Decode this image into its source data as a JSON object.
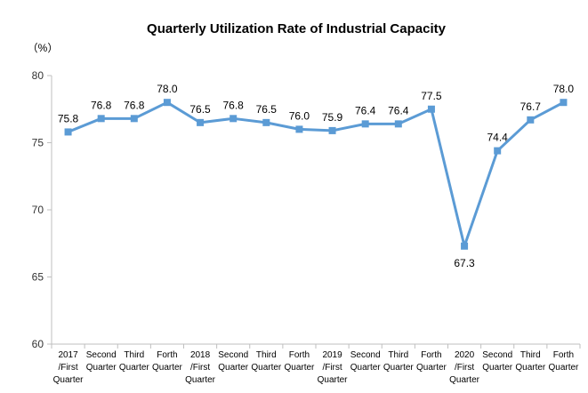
{
  "chart_data": {
    "type": "line",
    "title": "Quarterly Utilization Rate of Industrial Capacity",
    "unit_label": "（%）",
    "categories": [
      [
        "2017",
        "/First",
        "Quarter"
      ],
      [
        "Second",
        "Quarter"
      ],
      [
        "Third",
        "Quarter"
      ],
      [
        "Forth",
        "Quarter"
      ],
      [
        "2018",
        "/First",
        "Quarter"
      ],
      [
        "Second",
        "Quarter"
      ],
      [
        "Third",
        "Quarter"
      ],
      [
        "Forth",
        "Quarter"
      ],
      [
        "2019",
        "/First",
        "Quarter"
      ],
      [
        "Second",
        "Quarter"
      ],
      [
        "Third",
        "Quarter"
      ],
      [
        "Forth",
        "Quarter"
      ],
      [
        "2020",
        "/First",
        "Quarter"
      ],
      [
        "Second",
        "Quarter"
      ],
      [
        "Third",
        "Quarter"
      ],
      [
        "Forth",
        "Quarter"
      ]
    ],
    "values": [
      75.8,
      76.8,
      76.8,
      78.0,
      76.5,
      76.8,
      76.5,
      76.0,
      75.9,
      76.4,
      76.4,
      77.5,
      67.3,
      74.4,
      76.7,
      78.0
    ],
    "value_labels": [
      "75.8",
      "76.8",
      "76.8",
      "78.0",
      "76.5",
      "76.8",
      "76.5",
      "76.0",
      "75.9",
      "76.4",
      "76.4",
      "77.5",
      "67.3",
      "74.4",
      "76.7",
      "78.0"
    ],
    "ylim": [
      60,
      80
    ],
    "yticks": [
      60,
      65,
      70,
      75,
      80
    ],
    "grid": false,
    "legend": "none",
    "line_color": "#5B9BD5",
    "marker": "square"
  }
}
